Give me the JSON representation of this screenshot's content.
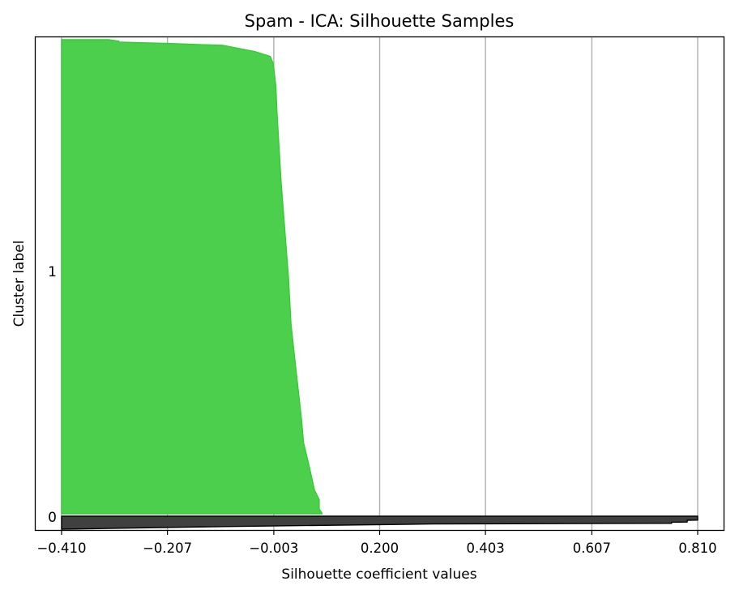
{
  "chart_data": {
    "type": "silhouette",
    "title": "Spam - ICA: Silhouette Samples",
    "xlabel": "Silhouette coefficient values",
    "ylabel": "Cluster label",
    "xlim": [
      -0.41,
      0.81
    ],
    "xticks": [
      -0.41,
      -0.207,
      -0.003,
      0.2,
      0.403,
      0.607,
      0.81
    ],
    "xtick_labels": [
      "−0.410",
      "−0.207",
      "−0.003",
      "0.200",
      "0.403",
      "0.607",
      "0.810"
    ],
    "grid": "vertical",
    "clusters": [
      {
        "label": "0",
        "color": "#404040",
        "edge_color": "#000000",
        "profile": [
          [
            0,
            0.81
          ],
          [
            0.02,
            0.81
          ],
          [
            0.3,
            0.81
          ],
          [
            0.31,
            0.79
          ],
          [
            0.45,
            0.79
          ],
          [
            0.46,
            0.76
          ],
          [
            0.55,
            0.76
          ],
          [
            0.6,
            0.3
          ],
          [
            0.8,
            -0.1
          ],
          [
            1,
            -0.41
          ]
        ]
      },
      {
        "label": "1",
        "color": "#4ccf4c",
        "edge_color": "#33cc33",
        "profile": [
          [
            0,
            -0.32
          ],
          [
            0.003,
            -0.3
          ],
          [
            0.005,
            -0.3
          ],
          [
            0.008,
            -0.2
          ],
          [
            0.012,
            -0.1
          ],
          [
            0.025,
            -0.04
          ],
          [
            0.035,
            -0.01
          ],
          [
            0.05,
            -0.004
          ],
          [
            0.1,
            0.001
          ],
          [
            0.15,
            0.003
          ],
          [
            0.3,
            0.011
          ],
          [
            0.5,
            0.025
          ],
          [
            0.6,
            0.03
          ],
          [
            0.7,
            0.04
          ],
          [
            0.8,
            0.05
          ],
          [
            0.85,
            0.054
          ],
          [
            0.9,
            0.065
          ],
          [
            0.95,
            0.075
          ],
          [
            0.97,
            0.084
          ],
          [
            0.99,
            0.084
          ],
          [
            1,
            0.09
          ]
        ]
      }
    ]
  }
}
